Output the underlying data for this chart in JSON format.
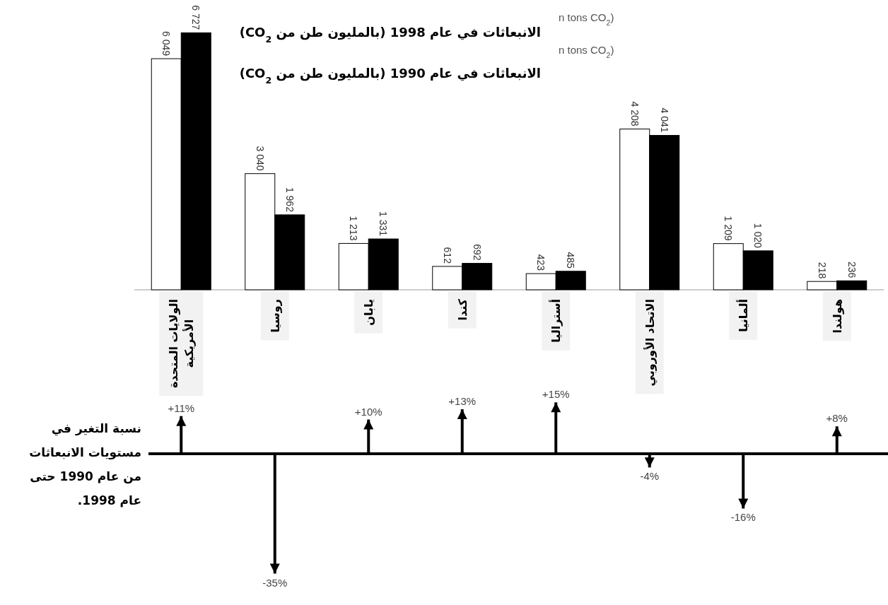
{
  "chart_data": [
    {
      "type": "bar",
      "categories": [
        "الولايات المتحدة الأمريكية",
        "روسيا",
        "يابان",
        "كندا",
        "أستراليا",
        "الاتحاد الأوروبي",
        "ألمانيا",
        "هولندا"
      ],
      "series": [
        {
          "name": "الانبعاثات في عام 1990 (بالمليون طن من CO$_{2}$)",
          "color": "#ffffff",
          "values": [
            6049,
            3040,
            1213,
            612,
            423,
            4208,
            1209,
            218
          ],
          "value_labels": [
            "6 049",
            "3 040",
            "1 213",
            "612",
            "423",
            "4 208",
            "1 209",
            "218"
          ]
        },
        {
          "name": "الانبعاثات في عام 1998 (بالمليون طن من CO$_{2}$)",
          "color": "#000000",
          "values": [
            6727,
            1962,
            1331,
            692,
            485,
            4041,
            1020,
            236
          ],
          "value_labels": [
            "6 727",
            "1 962",
            "1 331",
            "692",
            "485",
            "4 041",
            "1 020",
            "236"
          ]
        }
      ],
      "annotations": [
        "n tons CO$_{2}$)",
        "n tons CO$_{2}$)"
      ]
    },
    {
      "type": "bar",
      "ylabel": "نسبة التغير في مستويات الانبعاثات من عام 1990 حتى عام 1998.",
      "color": "#000000",
      "categories": [
        null,
        null,
        null,
        null,
        null,
        null,
        null,
        null
      ],
      "values": [
        11,
        -35,
        10,
        13,
        15,
        -4,
        -16,
        8
      ],
      "value_labels": [
        "+11%",
        "-35%",
        "+10%",
        "+13%",
        "+15%",
        "-4%",
        "-16%",
        "+8%"
      ]
    }
  ]
}
